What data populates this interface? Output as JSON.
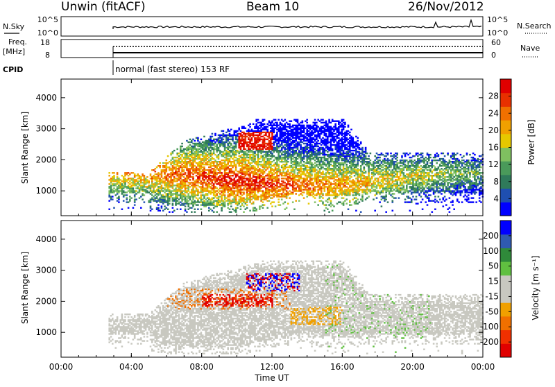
{
  "header": {
    "radar": "Unwin (fitACF)",
    "beam": "Beam 10",
    "date": "26/Nov/2012"
  },
  "nsky_panel": {
    "left_label": "N.Sky",
    "left_ticks": [
      "10^5",
      "10^0"
    ],
    "right_ticks": [
      "10^5",
      "10^0"
    ],
    "right_label": "N.Search"
  },
  "freq_panel": {
    "left_label_line1": "Freq.",
    "left_label_line2": "[MHz]",
    "left_ticks": [
      "18",
      "8"
    ],
    "right_ticks": [
      "60",
      "0"
    ],
    "right_label": "Nave"
  },
  "cpid_panel": {
    "label": "CPID",
    "mode": "normal (fast stereo) 153 RF"
  },
  "colors": {
    "power_scale": [
      "#0000ff",
      "#1f4fb0",
      "#2f7a5a",
      "#4a9a5a",
      "#7fc060",
      "#e6c800",
      "#f0a000",
      "#f07000",
      "#e83000",
      "#e00000"
    ],
    "velocity_scale": [
      "#e00000",
      "#f03000",
      "#f07000",
      "#f0a000",
      "#c8c8c0",
      "#c8c8c0",
      "#60c040",
      "#2f8a3a",
      "#2f5ab0",
      "#0000ff"
    ]
  },
  "chart_data": [
    {
      "type": "heatmap",
      "ylabel": "Slant Range [km]",
      "xlabel": "",
      "x_ticks": [
        "00:00",
        "04:00",
        "08:00",
        "12:00",
        "16:00",
        "20:00",
        "00:00"
      ],
      "y_ticks": [
        "1000",
        "2000",
        "3000",
        "4000"
      ],
      "ylim": [
        200,
        4600
      ],
      "colorbar": {
        "label": "Power [dB]",
        "ticks": [
          "4",
          "8",
          "12",
          "16",
          "20",
          "24",
          "28"
        ],
        "range": [
          0,
          32
        ]
      },
      "data_start_hour": 2.7,
      "data_end_hour": 24.0
    },
    {
      "type": "heatmap",
      "ylabel": "Slant Range [km]",
      "xlabel": "Time UT",
      "x_ticks": [
        "00:00",
        "04:00",
        "08:00",
        "12:00",
        "16:00",
        "20:00",
        "00:00"
      ],
      "y_ticks": [
        "1000",
        "2000",
        "3000",
        "4000"
      ],
      "ylim": [
        200,
        4600
      ],
      "colorbar": {
        "label": "Velocity [m s⁻¹]",
        "ticks": [
          "200",
          "100",
          "50",
          "15",
          "-15",
          "-50",
          "-100",
          "-200"
        ]
      },
      "data_start_hour": 2.7,
      "data_end_hour": 24.0
    }
  ]
}
